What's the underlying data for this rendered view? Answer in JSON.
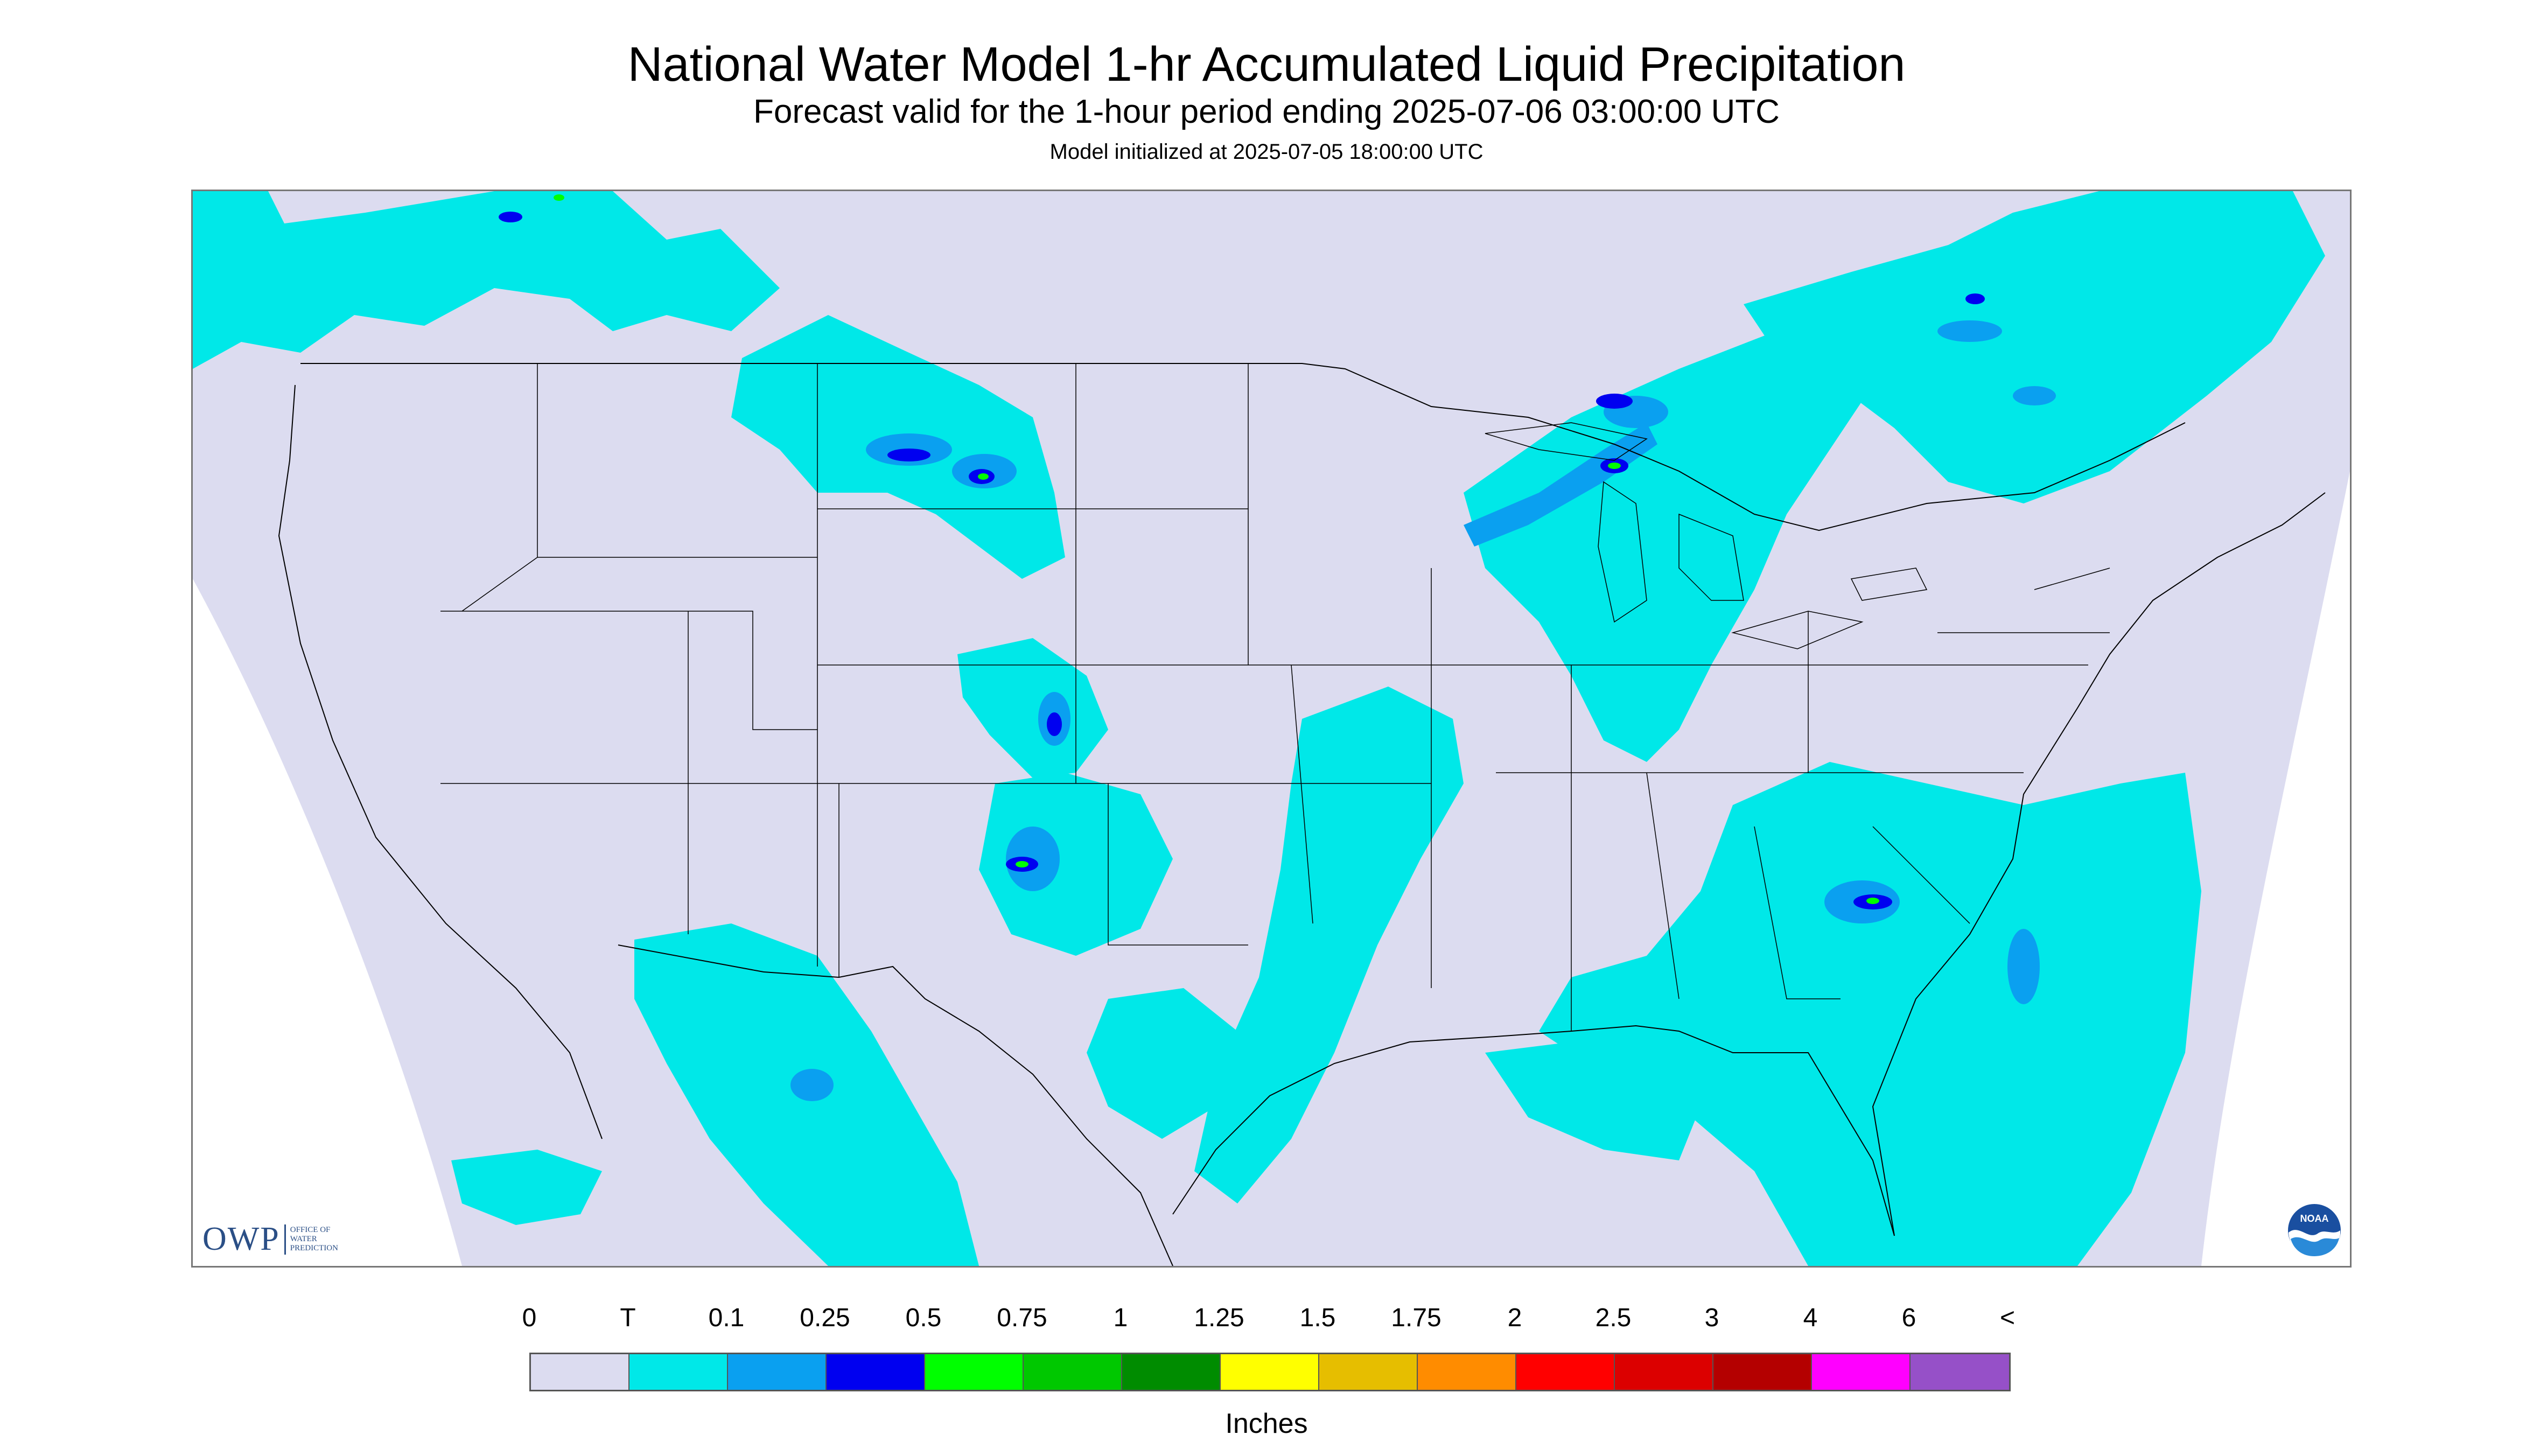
{
  "header": {
    "title": "National Water Model 1-hr Accumulated Liquid Precipitation",
    "subtitle": "Forecast valid for the 1-hour period ending 2025-07-06 03:00:00 UTC",
    "init": "Model initialized at 2025-07-05 18:00:00 UTC"
  },
  "logos": {
    "owp_letters": "OWP",
    "owp_line1": "OFFICE OF",
    "owp_line2": "WATER",
    "owp_line3": "PREDICTION",
    "noaa_text": "NOAA"
  },
  "legend": {
    "units": "Inches",
    "labels": [
      "0",
      "T",
      "0.1",
      "0.25",
      "0.5",
      "0.75",
      "1",
      "1.25",
      "1.5",
      "1.75",
      "2",
      "2.5",
      "3",
      "4",
      "6",
      "<"
    ],
    "colors": [
      "#dcdcf0",
      "#00e8e8",
      "#0aa0f0",
      "#0000f0",
      "#00ff00",
      "#00c800",
      "#008c00",
      "#ffff00",
      "#e6be00",
      "#ff8c00",
      "#ff0000",
      "#dc0000",
      "#b40000",
      "#ff00ff",
      "#9650c8"
    ]
  },
  "colors": {
    "no_data": "#ffffff",
    "background": "#dcdcf0",
    "trace": "#00e8e8",
    "light": "#0aa0f0",
    "moderate": "#0000f0",
    "heavy": "#00ff00"
  }
}
